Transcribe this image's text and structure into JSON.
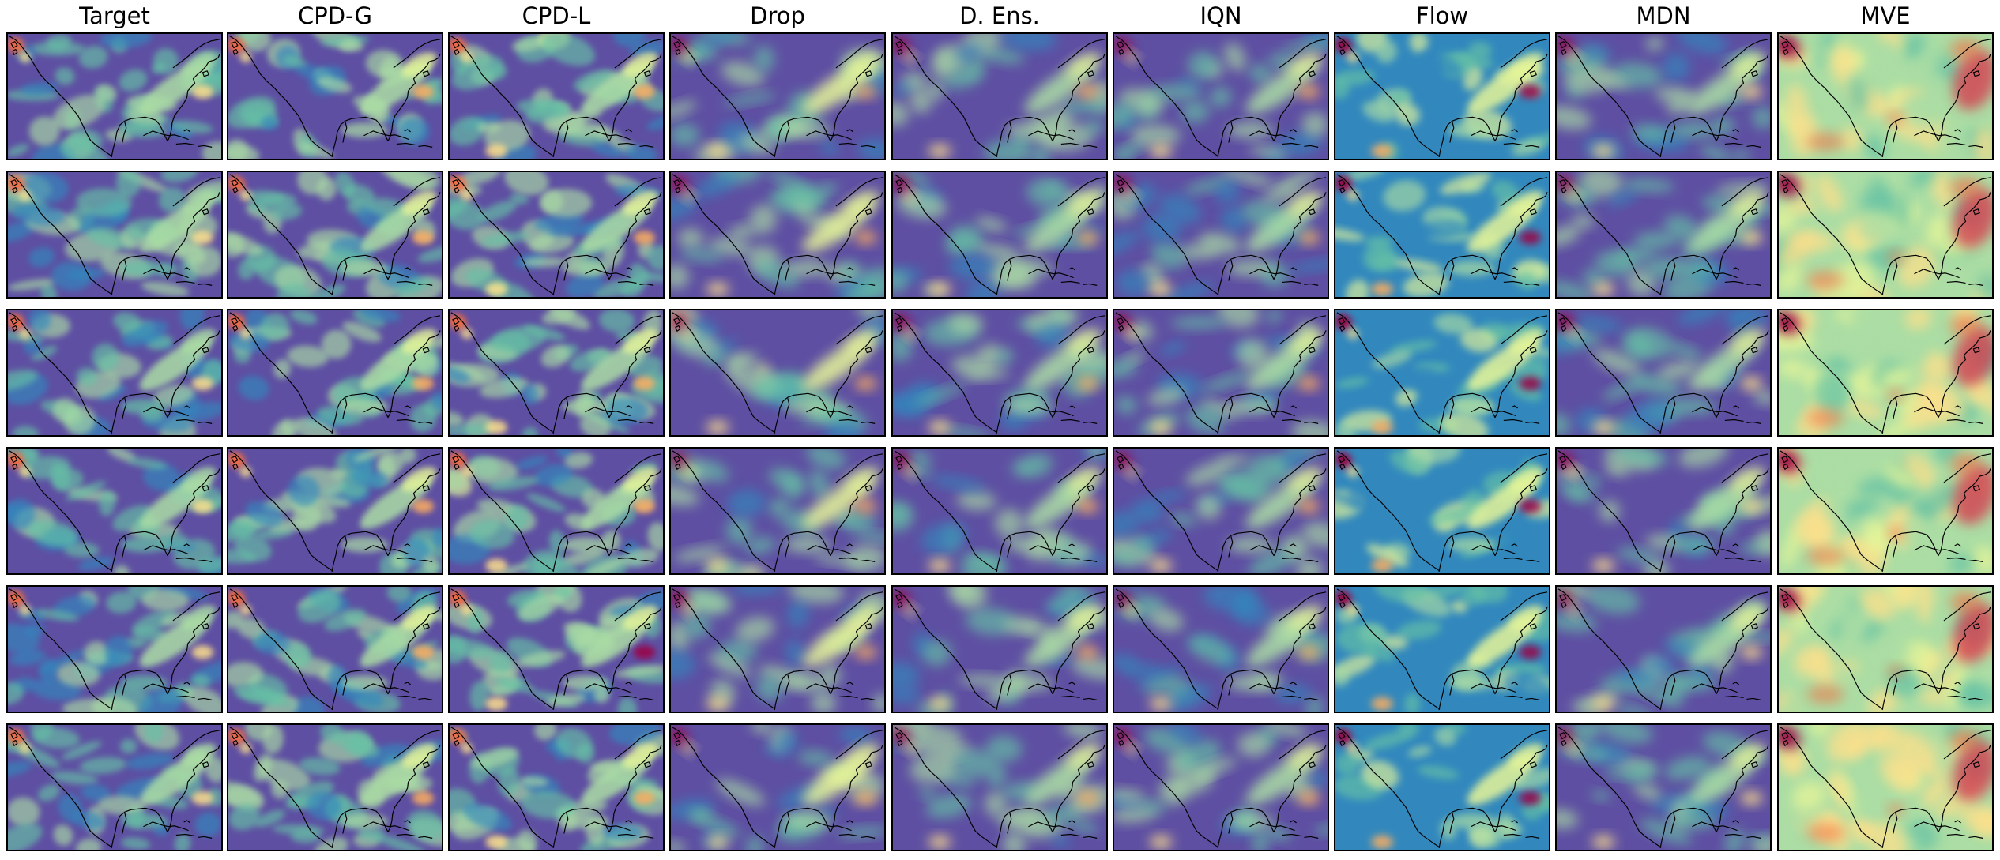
{
  "columns": [
    {
      "id": "target",
      "title": "Target",
      "style": "sharp",
      "bias": -0.05
    },
    {
      "id": "cpd-g",
      "title": "CPD-G",
      "style": "sharp",
      "bias": 0.05
    },
    {
      "id": "cpd-l",
      "title": "CPD-L",
      "style": "sharp",
      "bias": 0.08
    },
    {
      "id": "drop",
      "title": "Drop",
      "style": "smooth",
      "bias": 0.1
    },
    {
      "id": "d-ens",
      "title": "D. Ens.",
      "style": "smooth",
      "bias": 0.05
    },
    {
      "id": "iqn",
      "title": "IQN",
      "style": "smooth",
      "bias": 0.0
    },
    {
      "id": "flow",
      "title": "Flow",
      "style": "blotchy",
      "bias": 0.22
    },
    {
      "id": "mdn",
      "title": "MDN",
      "style": "smooth",
      "bias": -0.02
    },
    {
      "id": "mve",
      "title": "MVE",
      "style": "warm",
      "bias": 0.5
    }
  ],
  "rows": 6,
  "colormap": [
    "#5e4fa2",
    "#3288bd",
    "#66c2a5",
    "#abdda4",
    "#e6f598",
    "#fee08b",
    "#fdae61",
    "#f46d43",
    "#d53e4f",
    "#9e0142"
  ]
}
